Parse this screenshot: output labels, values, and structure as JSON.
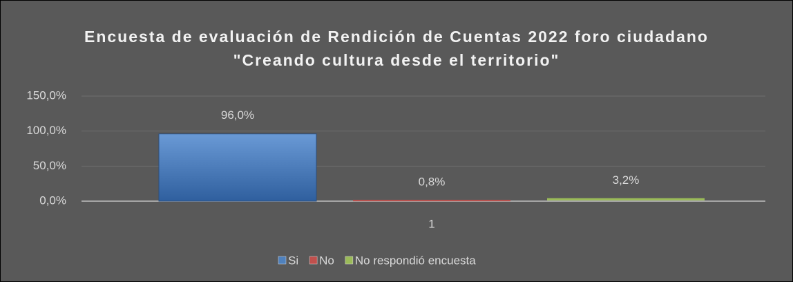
{
  "chart_data": {
    "type": "bar",
    "title": "Encuesta de evaluación de Rendición de Cuentas 2022 foro ciudadano \"Creando cultura desde el territorio\"",
    "categories": [
      "1"
    ],
    "series": [
      {
        "name": "Si",
        "color": "#4f81bd",
        "values": [
          96.0
        ],
        "value_labels": [
          "96,0%"
        ]
      },
      {
        "name": "No",
        "color": "#c0504d",
        "values": [
          0.8
        ],
        "value_labels": [
          "0,8%"
        ]
      },
      {
        "name": "No respondió encuesta",
        "color": "#9bbb59",
        "values": [
          3.2
        ],
        "value_labels": [
          "3,2%"
        ]
      }
    ],
    "ylim": [
      0,
      150
    ],
    "yticks": [
      {
        "value": 0,
        "label": "0,0%"
      },
      {
        "value": 50,
        "label": "50,0%"
      },
      {
        "value": 100,
        "label": "100,0%"
      },
      {
        "value": 150,
        "label": "150,0%"
      }
    ],
    "grid": true,
    "legend": "bottom"
  }
}
